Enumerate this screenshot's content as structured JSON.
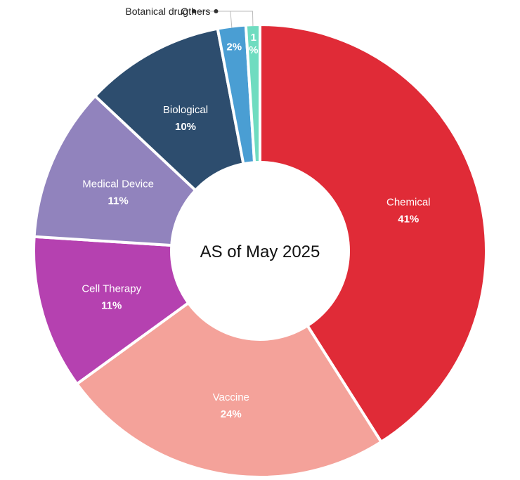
{
  "chart_data": {
    "type": "pie",
    "donut": true,
    "center_label": "AS of May 2025",
    "slices": [
      {
        "label": "Chemical",
        "value": 41,
        "value_label": "41%",
        "color": "#e02b37"
      },
      {
        "label": "Vaccine",
        "value": 24,
        "value_label": "24%",
        "color": "#f4a29a"
      },
      {
        "label": "Cell Therapy",
        "value": 11,
        "value_label": "11%",
        "color": "#b541b0"
      },
      {
        "label": "Medical Device",
        "value": 11,
        "value_label": "11%",
        "color": "#9183bd"
      },
      {
        "label": "Biological",
        "value": 10,
        "value_label": "10%",
        "color": "#2d4d6e"
      },
      {
        "label": "Botanical drug",
        "value": 2,
        "value_label": "2%",
        "color": "#4a9ed3"
      },
      {
        "label": "Others",
        "value": 1,
        "value_label": "1%",
        "color": "#6fdcc0"
      }
    ]
  }
}
